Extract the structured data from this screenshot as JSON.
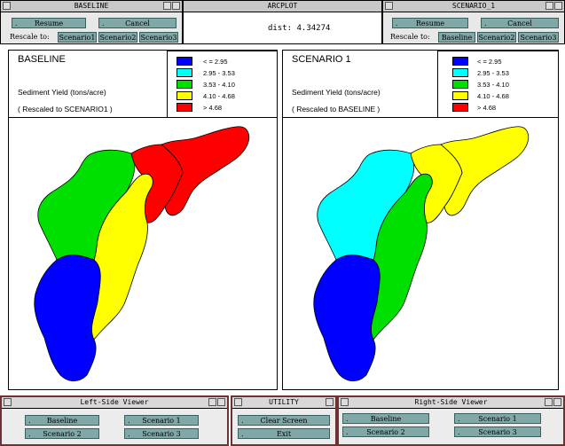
{
  "baseline_window": {
    "title": "BASELINE",
    "resume_label": "Resume",
    "cancel_label": "Cancel",
    "rescale_label": "Rescale to:",
    "rescale_options": [
      "Scenario1",
      "Scenario2",
      "Scenario3"
    ]
  },
  "arcplot_window": {
    "title": "ARCPLOT",
    "dist_text": "dist: 4.34274"
  },
  "scenario_window": {
    "title": "SCENARIO_1",
    "resume_label": "Resume",
    "cancel_label": "Cancel",
    "rescale_label": "Rescale to:",
    "rescale_options": [
      "Baseline",
      "Scenario2",
      "Scenario3"
    ]
  },
  "left_panel": {
    "title": "BASELINE",
    "subtitle": "Sediment Yield (tons/acre)",
    "rescale_note": "( Rescaled to SCENARIO1 )"
  },
  "right_panel": {
    "title": "SCENARIO 1",
    "subtitle": "Sediment Yield (tons/acre)",
    "rescale_note": "( Rescaled to BASELINE )"
  },
  "legend": [
    {
      "label": "< = 2.95",
      "color": "#0000ff"
    },
    {
      "label": "2.95 - 3.53",
      "color": "#00ffff"
    },
    {
      "label": "3.53 - 4.10",
      "color": "#00e000"
    },
    {
      "label": "4.10 - 4.68",
      "color": "#ffff00"
    },
    {
      "label": "> 4.68",
      "color": "#ff0000"
    }
  ],
  "map_colors": {
    "baseline": [
      "#0000ff",
      "#00e000",
      "#ffff00",
      "#ff0000",
      "#ff0000"
    ],
    "scenario": [
      "#0000ff",
      "#00ffff",
      "#00e000",
      "#ffff00",
      "#ffff00"
    ]
  },
  "left_viewer": {
    "title": "Left-Side Viewer",
    "buttons": [
      "Baseline",
      "Scenario 1",
      "Scenario 2",
      "Scenario 3"
    ]
  },
  "utility": {
    "title": "UTILITY",
    "buttons": [
      "Clear Screen",
      "Exit"
    ]
  },
  "right_viewer": {
    "title": "Right-Side Viewer",
    "buttons": [
      "Baseline",
      "Scenario 1",
      "Scenario 2",
      "Scenario 3"
    ]
  }
}
